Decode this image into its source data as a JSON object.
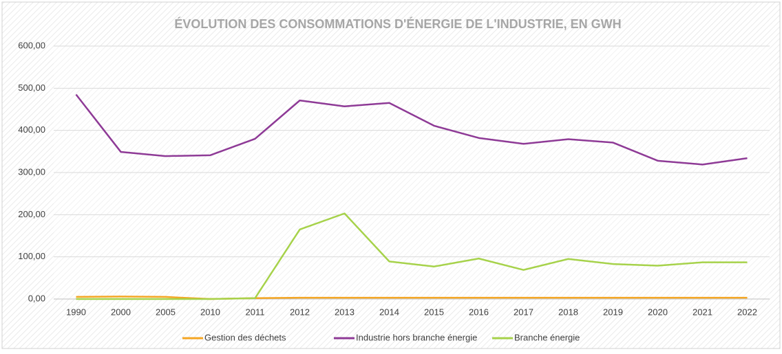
{
  "chart_data": {
    "type": "line",
    "title": "ÉVOLUTION DES CONSOMMATIONS D'ÉNERGIE DE L'INDUSTRIE, EN GWH",
    "categories": [
      "1990",
      "2000",
      "2005",
      "2010",
      "2011",
      "2012",
      "2013",
      "2014",
      "2015",
      "2016",
      "2017",
      "2018",
      "2019",
      "2020",
      "2021",
      "2022"
    ],
    "series": [
      {
        "name": "Gestion des déchets",
        "color": "#f5a623",
        "values": [
          5,
          6,
          5,
          0,
          2,
          3,
          3,
          3,
          3,
          3,
          3,
          3,
          3,
          3,
          3,
          3
        ]
      },
      {
        "name": "Industrie hors branche énergie",
        "color": "#8e3a96",
        "values": [
          485,
          349,
          339,
          341,
          380,
          471,
          457,
          465,
          411,
          382,
          368,
          379,
          371,
          328,
          319,
          334
        ]
      },
      {
        "name": "Branche énergie",
        "color": "#a6d24a",
        "values": [
          0,
          0,
          0,
          0,
          2,
          165,
          203,
          89,
          77,
          96,
          69,
          95,
          83,
          79,
          87,
          87
        ]
      }
    ],
    "ylim": [
      0,
      600
    ],
    "yticks": [
      {
        "value": 0,
        "label": "0,00"
      },
      {
        "value": 100,
        "label": "100,00"
      },
      {
        "value": 200,
        "label": "200,00"
      },
      {
        "value": 300,
        "label": "300,00"
      },
      {
        "value": 400,
        "label": "400,00"
      },
      {
        "value": 500,
        "label": "500,00"
      },
      {
        "value": 600,
        "label": "600,00"
      }
    ],
    "grid": true,
    "legend": "bottom"
  }
}
